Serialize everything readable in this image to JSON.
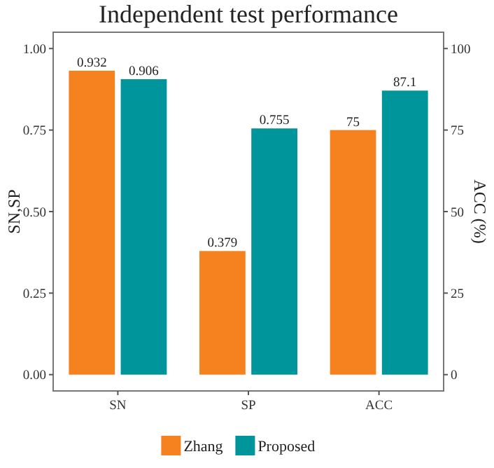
{
  "chart_data": {
    "type": "bar",
    "title": "Independent test performance",
    "ylabel": "SN,SP",
    "y2label": "ACC (%)",
    "categories": [
      "SN",
      "SP",
      "ACC"
    ],
    "series": [
      {
        "name": "Zhang",
        "color": "#f5821f",
        "values": [
          0.932,
          0.379,
          null
        ]
      },
      {
        "name": "Proposed",
        "color": "#00959a",
        "values": [
          0.906,
          0.755,
          null
        ]
      },
      {
        "color": "#f5821f",
        "axis": "y2",
        "values": [
          null,
          null,
          75
        ]
      },
      {
        "color": "#00959a",
        "axis": "y2",
        "values": [
          null,
          null,
          87.1
        ]
      }
    ],
    "ylim": [
      -0.05,
      1.05
    ],
    "yticks": [
      {
        "value": 0,
        "label": "0.00"
      },
      {
        "value": 0.25,
        "label": "0.25"
      },
      {
        "value": 0.5,
        "label": "0.50"
      },
      {
        "value": 0.75,
        "label": "0.75"
      },
      {
        "value": 1,
        "label": "1.00"
      }
    ],
    "y2lim": [
      -5,
      105
    ],
    "y2ticks": [
      0,
      25,
      50,
      75,
      100
    ],
    "data_labels": true,
    "grid": false,
    "legend": "bottom"
  }
}
